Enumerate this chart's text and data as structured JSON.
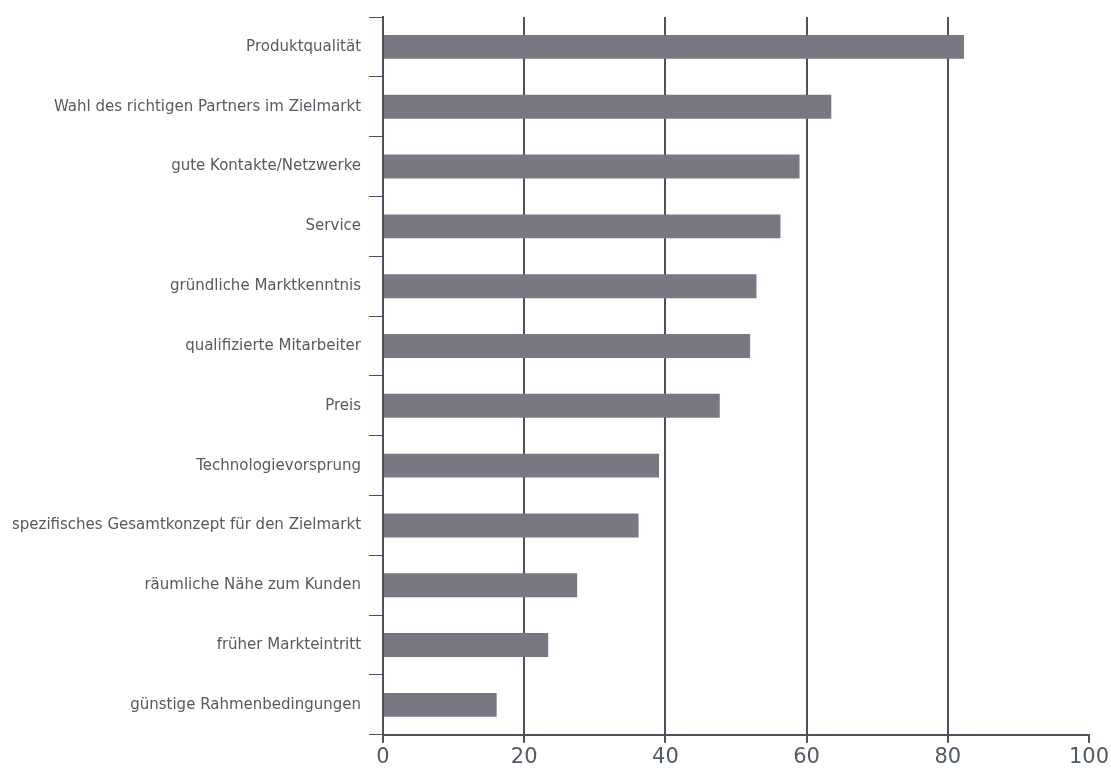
{
  "chart_data": {
    "type": "bar",
    "orientation": "horizontal",
    "categories": [
      "Produktqualität",
      "Wahl des richtigen Partners im Zielmarkt",
      "gute Kontakte/Netzwerke",
      "Service",
      "gründliche Marktkenntnis",
      "qualifizierte Mitarbeiter",
      "Preis",
      "Technologievorsprung",
      "spezifisches Gesamtkonzept für den Zielmarkt",
      "räumliche Nähe zum Kunden",
      "früher Markteintritt",
      "günstige Rahmenbedingungen"
    ],
    "values": [
      82.3,
      63.5,
      59,
      56.3,
      52.9,
      52,
      47.7,
      39.1,
      36.2,
      27.5,
      23.4,
      16.1
    ],
    "color": "#787882",
    "xlim": [
      0,
      100
    ],
    "xticks": [
      0,
      20,
      40,
      60,
      80,
      100
    ],
    "grid": "x",
    "legend": false
  }
}
